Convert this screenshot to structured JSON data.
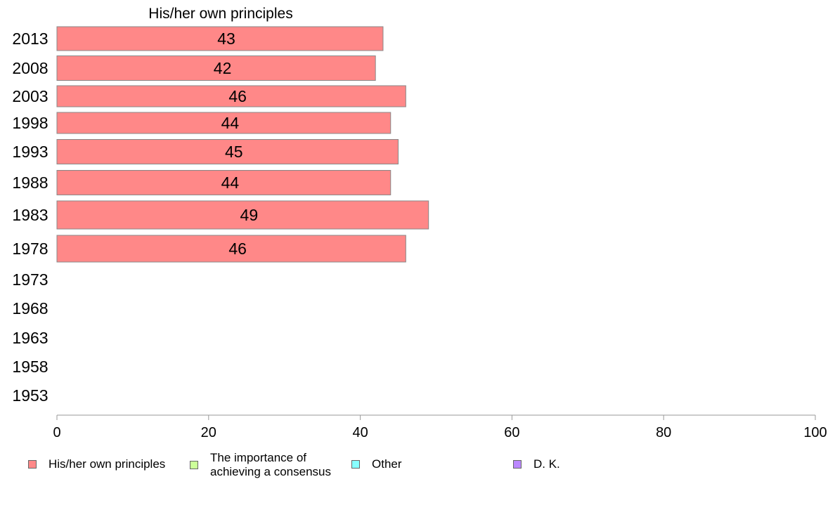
{
  "chart_data": {
    "type": "bar",
    "orientation": "horizontal",
    "title": "His/her own principles",
    "categories": [
      "2013",
      "2008",
      "2003",
      "1998",
      "1993",
      "1988",
      "1983",
      "1978",
      "1973",
      "1968",
      "1963",
      "1958",
      "1953"
    ],
    "series": [
      {
        "name": "His/her own principles",
        "color": "#ff8888",
        "values": [
          43,
          42,
          46,
          44,
          45,
          44,
          49,
          46,
          null,
          null,
          null,
          null,
          null
        ]
      },
      {
        "name": "The importance of achieving a consensus",
        "color": "#ccff99",
        "values": [
          null,
          null,
          null,
          null,
          null,
          null,
          null,
          null,
          null,
          null,
          null,
          null,
          null
        ]
      },
      {
        "name": "Other",
        "color": "#88ffff",
        "values": [
          null,
          null,
          null,
          null,
          null,
          null,
          null,
          null,
          null,
          null,
          null,
          null,
          null
        ]
      },
      {
        "name": "D. K.",
        "color": "#bb88ff",
        "values": [
          null,
          null,
          null,
          null,
          null,
          null,
          null,
          null,
          null,
          null,
          null,
          null,
          null
        ]
      }
    ],
    "data_labels": [
      "43",
      "42",
      "46",
      "44",
      "45",
      "44",
      "49",
      "46"
    ],
    "xlim": [
      0,
      100
    ],
    "xticks": [
      "0",
      "20",
      "40",
      "60",
      "80",
      "100"
    ],
    "grid": false,
    "legend_position": "bottom"
  },
  "legend": {
    "items": [
      {
        "label_lines": [
          "His/her own principles"
        ],
        "color": "#ff8888"
      },
      {
        "label_lines": [
          "The importance of",
          "achieving a consensus"
        ],
        "color": "#ccff99"
      },
      {
        "label_lines": [
          "Other"
        ],
        "color": "#88ffff"
      },
      {
        "label_lines": [
          "D. K."
        ],
        "color": "#bb88ff"
      }
    ]
  }
}
